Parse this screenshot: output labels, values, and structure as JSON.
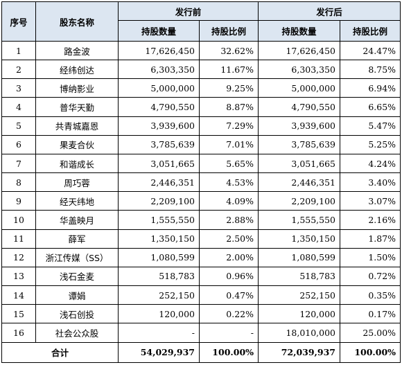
{
  "header": {
    "seq": "序号",
    "name": "股东名称",
    "before": "发行前",
    "after": "发行后",
    "shares": "持股数量",
    "ratio": "持股比例"
  },
  "rows": [
    {
      "seq": "1",
      "name": "路金波",
      "b_shares": "17,626,450",
      "b_ratio": "32.62%",
      "a_shares": "17,626,450",
      "a_ratio": "24.47%"
    },
    {
      "seq": "2",
      "name": "经纬创达",
      "b_shares": "6,303,350",
      "b_ratio": "11.67%",
      "a_shares": "6,303,350",
      "a_ratio": "8.75%"
    },
    {
      "seq": "3",
      "name": "博纳影业",
      "b_shares": "5,000,000",
      "b_ratio": "9.25%",
      "a_shares": "5,000,000",
      "a_ratio": "6.94%"
    },
    {
      "seq": "4",
      "name": "普华天勤",
      "b_shares": "4,790,550",
      "b_ratio": "8.87%",
      "a_shares": "4,790,550",
      "a_ratio": "6.65%"
    },
    {
      "seq": "5",
      "name": "共青城嘉恩",
      "b_shares": "3,939,600",
      "b_ratio": "7.29%",
      "a_shares": "3,939,600",
      "a_ratio": "5.47%"
    },
    {
      "seq": "6",
      "name": "果麦合伙",
      "b_shares": "3,785,639",
      "b_ratio": "7.01%",
      "a_shares": "3,785,639",
      "a_ratio": "5.25%"
    },
    {
      "seq": "7",
      "name": "和谐成长",
      "b_shares": "3,051,665",
      "b_ratio": "5.65%",
      "a_shares": "3,051,665",
      "a_ratio": "4.24%"
    },
    {
      "seq": "8",
      "name": "周巧蓉",
      "b_shares": "2,446,351",
      "b_ratio": "4.53%",
      "a_shares": "2,446,351",
      "a_ratio": "3.40%"
    },
    {
      "seq": "9",
      "name": "经天纬地",
      "b_shares": "2,209,100",
      "b_ratio": "4.09%",
      "a_shares": "2,209,100",
      "a_ratio": "3.07%"
    },
    {
      "seq": "10",
      "name": "华盖映月",
      "b_shares": "1,555,550",
      "b_ratio": "2.88%",
      "a_shares": "1,555,550",
      "a_ratio": "2.16%"
    },
    {
      "seq": "11",
      "name": "薛军",
      "b_shares": "1,350,150",
      "b_ratio": "2.50%",
      "a_shares": "1,350,150",
      "a_ratio": "1.87%"
    },
    {
      "seq": "12",
      "name": "浙江传媒（SS）",
      "b_shares": "1,080,599",
      "b_ratio": "2.00%",
      "a_shares": "1,080,599",
      "a_ratio": "1.50%"
    },
    {
      "seq": "13",
      "name": "浅石金麦",
      "b_shares": "518,783",
      "b_ratio": "0.96%",
      "a_shares": "518,783",
      "a_ratio": "0.72%"
    },
    {
      "seq": "14",
      "name": "谭娟",
      "b_shares": "252,150",
      "b_ratio": "0.47%",
      "a_shares": "252,150",
      "a_ratio": "0.35%"
    },
    {
      "seq": "15",
      "name": "浅石创投",
      "b_shares": "120,000",
      "b_ratio": "0.22%",
      "a_shares": "120,000",
      "a_ratio": "0.17%"
    },
    {
      "seq": "16",
      "name": "社会公众股",
      "b_shares": "-",
      "b_ratio": "-",
      "a_shares": "18,010,000",
      "a_ratio": "25.00%"
    }
  ],
  "total": {
    "label": "合计",
    "b_shares": "54,029,937",
    "b_ratio": "100.00%",
    "a_shares": "72,039,937",
    "a_ratio": "100.00%"
  }
}
